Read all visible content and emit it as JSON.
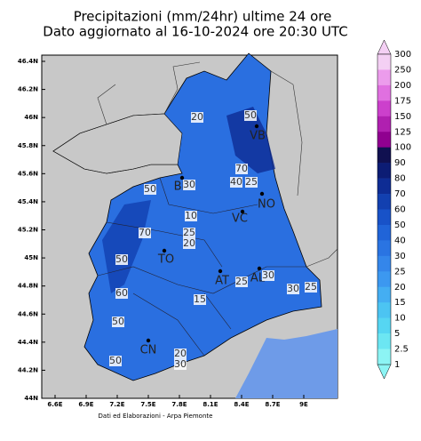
{
  "title": [
    "Precipitazioni (mm/24hr) ultime 24 ore",
    "Dato aggiornato al 16-10-2024 ore 20:30 UTC"
  ],
  "map": {
    "lat_ticks": [
      "46.4N",
      "46.2N",
      "46N",
      "45.8N",
      "45.6N",
      "45.4N",
      "45.2N",
      "45N",
      "44.8N",
      "44.6N",
      "44.4N",
      "44.2N",
      "44N"
    ],
    "lon_ticks": [
      "6.6E",
      "6.9E",
      "7.2E",
      "7.5E",
      "7.8E",
      "8.1E",
      "8.4E",
      "8.7E",
      "9E"
    ],
    "cities": [
      "VB",
      "BI",
      "NO",
      "VC",
      "TO",
      "AT",
      "AL",
      "CN"
    ],
    "contour_labels": [
      "50",
      "20",
      "70",
      "40",
      "25",
      "50",
      "30",
      "10",
      "25",
      "20",
      "70",
      "50",
      "60",
      "50",
      "15",
      "25",
      "30",
      "30",
      "25",
      "50",
      "30",
      "20"
    ]
  },
  "colorbar": {
    "labels": [
      "300",
      "250",
      "200",
      "175",
      "150",
      "125",
      "100",
      "90",
      "80",
      "70",
      "60",
      "50",
      "40",
      "30",
      "25",
      "20",
      "15",
      "10",
      "5",
      "2.5",
      "1"
    ],
    "colors": [
      "#f4d0f4",
      "#ec9cec",
      "#e070e0",
      "#cc40cc",
      "#b020b0",
      "#900090",
      "#101050",
      "#0c1c74",
      "#0e2c94",
      "#1240b0",
      "#1852c8",
      "#2064d8",
      "#2a74e2",
      "#3486ea",
      "#3c98f0",
      "#44aef2",
      "#4cc4f2",
      "#56d6f2",
      "#6ce6f2",
      "#8cf4f4"
    ]
  },
  "footer": "Dati ed Elaborazioni - Arpa Piemonte"
}
